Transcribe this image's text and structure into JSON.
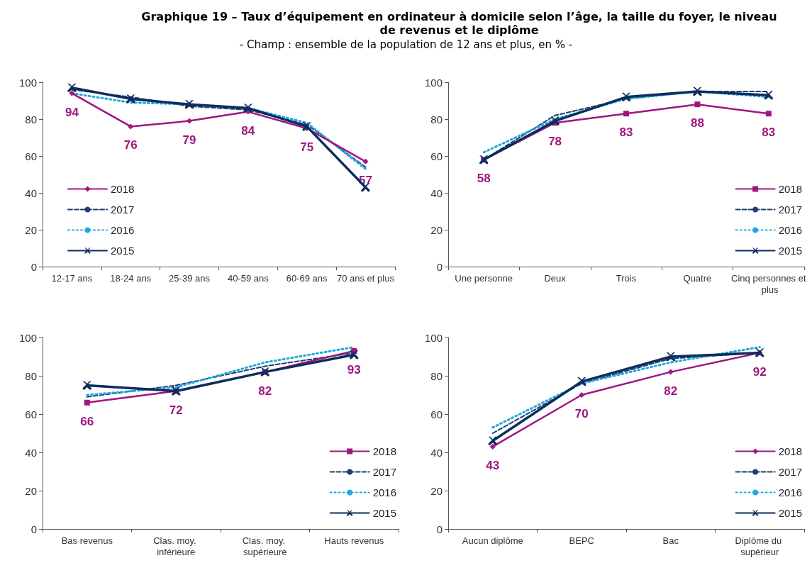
{
  "chart_data": [
    {
      "type": "line",
      "title": "Graphique 19 – Taux d’équipement en ordinateur à domicile selon l’âge, la taille du foyer, le niveau de revenus et le diplôme",
      "subtitle": "- Champ : ensemble de la population de 12 ans et plus, en % -",
      "categories": [
        "12-17 ans",
        "18-24 ans",
        "25-39 ans",
        "40-59 ans",
        "60-69 ans",
        "70 ans et plus"
      ],
      "ylim": [
        0,
        100
      ],
      "yticks": [
        0,
        20,
        40,
        60,
        80,
        100
      ],
      "grid": false,
      "legend": "bottom left",
      "series": [
        {
          "name": "2018",
          "color": "#a0157f",
          "marker": "diamond",
          "line_style": "solid",
          "values": [
            94,
            76,
            79,
            84,
            75,
            57
          ],
          "value_labels": [
            "94",
            "76",
            "79",
            "84",
            "75",
            "57"
          ]
        },
        {
          "name": "2017",
          "color": "#1f3f6e",
          "marker": "none",
          "line_style": "dashed",
          "values": [
            96,
            92,
            87,
            85,
            77,
            54
          ]
        },
        {
          "name": "2016",
          "color": "#1fa8e0",
          "marker": "none",
          "line_style": "dotted",
          "values": [
            94,
            89,
            88,
            86,
            78,
            53
          ]
        },
        {
          "name": "2015",
          "color": "#0d2d5e",
          "marker": "cross",
          "line_style": "solid",
          "values": [
            97,
            91,
            88,
            86,
            76,
            43
          ]
        }
      ]
    },
    {
      "type": "line",
      "categories": [
        "Une personne",
        "Deux",
        "Trois",
        "Quatre",
        "Cinq personnes et plus"
      ],
      "ylim": [
        0,
        100
      ],
      "yticks": [
        0,
        20,
        40,
        60,
        80,
        100
      ],
      "grid": false,
      "legend": "bottom right",
      "series": [
        {
          "name": "2018",
          "color": "#a0157f",
          "marker": "square",
          "line_style": "solid",
          "values": [
            58,
            78,
            83,
            88,
            83
          ],
          "value_labels": [
            "58",
            "78",
            "83",
            "88",
            "83"
          ]
        },
        {
          "name": "2017",
          "color": "#1f3f6e",
          "marker": "none",
          "line_style": "dashed",
          "values": [
            58,
            82,
            91,
            95,
            95
          ]
        },
        {
          "name": "2016",
          "color": "#1fa8e0",
          "marker": "none",
          "line_style": "dotted",
          "values": [
            62,
            80,
            91,
            95,
            92
          ]
        },
        {
          "name": "2015",
          "color": "#0d2d5e",
          "marker": "cross",
          "line_style": "solid",
          "values": [
            58,
            79,
            92,
            95,
            93
          ]
        }
      ]
    },
    {
      "type": "line",
      "categories": [
        "Bas revenus",
        "Clas. moy. inférieure",
        "Clas. moy. supérieure",
        "Hauts revenus"
      ],
      "ylim": [
        0,
        100
      ],
      "yticks": [
        0,
        20,
        40,
        60,
        80,
        100
      ],
      "grid": false,
      "legend": "bottom right",
      "series": [
        {
          "name": "2018",
          "color": "#a0157f",
          "marker": "square",
          "line_style": "solid",
          "values": [
            66,
            72,
            82,
            93
          ],
          "value_labels": [
            "66",
            "72",
            "82",
            "93"
          ]
        },
        {
          "name": "2017",
          "color": "#1f3f6e",
          "marker": "none",
          "line_style": "dashed",
          "values": [
            69,
            75,
            85,
            92
          ]
        },
        {
          "name": "2016",
          "color": "#1fa8e0",
          "marker": "none",
          "line_style": "dotted",
          "values": [
            70,
            74,
            87,
            95
          ]
        },
        {
          "name": "2015",
          "color": "#0d2d5e",
          "marker": "cross",
          "line_style": "solid",
          "values": [
            75,
            72,
            82,
            91
          ]
        }
      ]
    },
    {
      "type": "line",
      "categories": [
        "Aucun diplôme",
        "BEPC",
        "Bac",
        "Diplôme du supérieur"
      ],
      "ylim": [
        0,
        100
      ],
      "yticks": [
        0,
        20,
        40,
        60,
        80,
        100
      ],
      "grid": false,
      "legend": "bottom right",
      "series": [
        {
          "name": "2018",
          "color": "#a0157f",
          "marker": "diamond",
          "line_style": "solid",
          "values": [
            43,
            70,
            82,
            92
          ],
          "value_labels": [
            "43",
            "70",
            "82",
            "92"
          ]
        },
        {
          "name": "2017",
          "color": "#1f3f6e",
          "marker": "none",
          "line_style": "dashed",
          "values": [
            50,
            76,
            89,
            92
          ]
        },
        {
          "name": "2016",
          "color": "#1fa8e0",
          "marker": "none",
          "line_style": "dotted",
          "values": [
            53,
            76,
            87,
            95
          ]
        },
        {
          "name": "2015",
          "color": "#0d2d5e",
          "marker": "cross",
          "line_style": "solid",
          "values": [
            46,
            77,
            90,
            92
          ]
        }
      ]
    }
  ]
}
